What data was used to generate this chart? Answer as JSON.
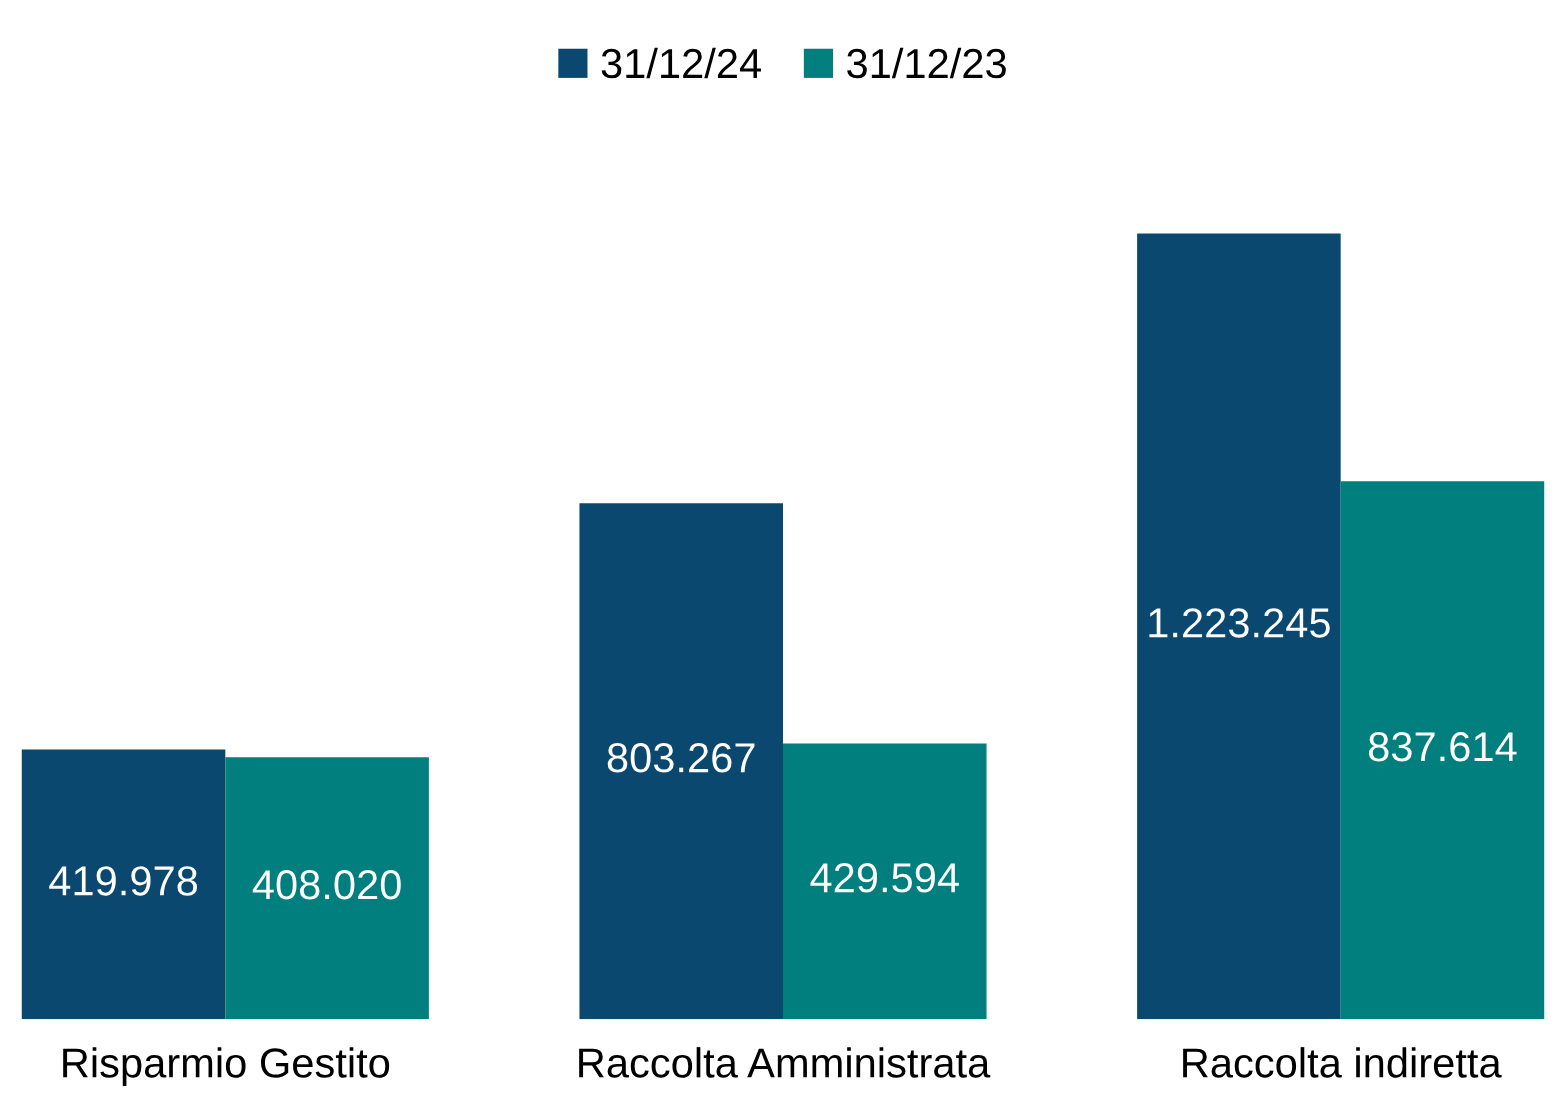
{
  "chart_data": {
    "type": "bar",
    "categories": [
      "Risparmio Gestito",
      "Raccolta Amministrata",
      "Raccolta indiretta"
    ],
    "series": [
      {
        "name": "31/12/24",
        "color": "#0b4870",
        "values": [
          419978,
          803267,
          1223245
        ],
        "value_labels": [
          "419.978",
          "803.267",
          "1.223.245"
        ]
      },
      {
        "name": "31/12/23",
        "color": "#007f7e",
        "values": [
          408020,
          429594,
          837614
        ],
        "value_labels": [
          "408.020",
          "429.594",
          "837.614"
        ]
      }
    ],
    "legend": "top",
    "grid": false
  }
}
